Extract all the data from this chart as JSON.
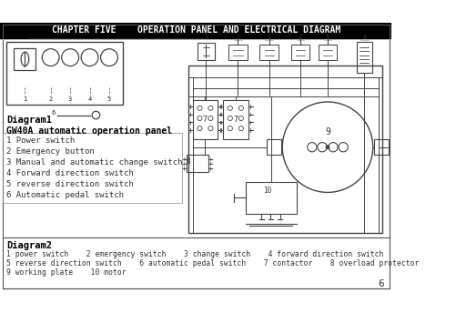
{
  "title": "CHAPTER FIVE    OPERATION PANEL AND ELECTRICAL DIAGRAM",
  "title_bg": "#000000",
  "title_fg": "#ffffff",
  "page_bg": "#ffffff",
  "diagram1_label": "Diagram1",
  "diagram1_subtitle": "GW40A automatic operation panel",
  "diagram1_items": [
    "1 Power switch",
    "2 Emergency button",
    "3 Manual and automatic change switch",
    "4 Forward direction switch",
    "5 reverse direction switch",
    "6 Automatic pedal switch"
  ],
  "diagram2_label": "Diagram2",
  "diagram2_line1": "1 power switch    2 emergency switch    3 change switch    4 forward direction switch",
  "diagram2_line2": "5 reverse direction switch    6 automatic pedal switch    7 contactor    8 overload protector",
  "diagram2_line3": "9 working plate    10 motor",
  "page_number": "6"
}
